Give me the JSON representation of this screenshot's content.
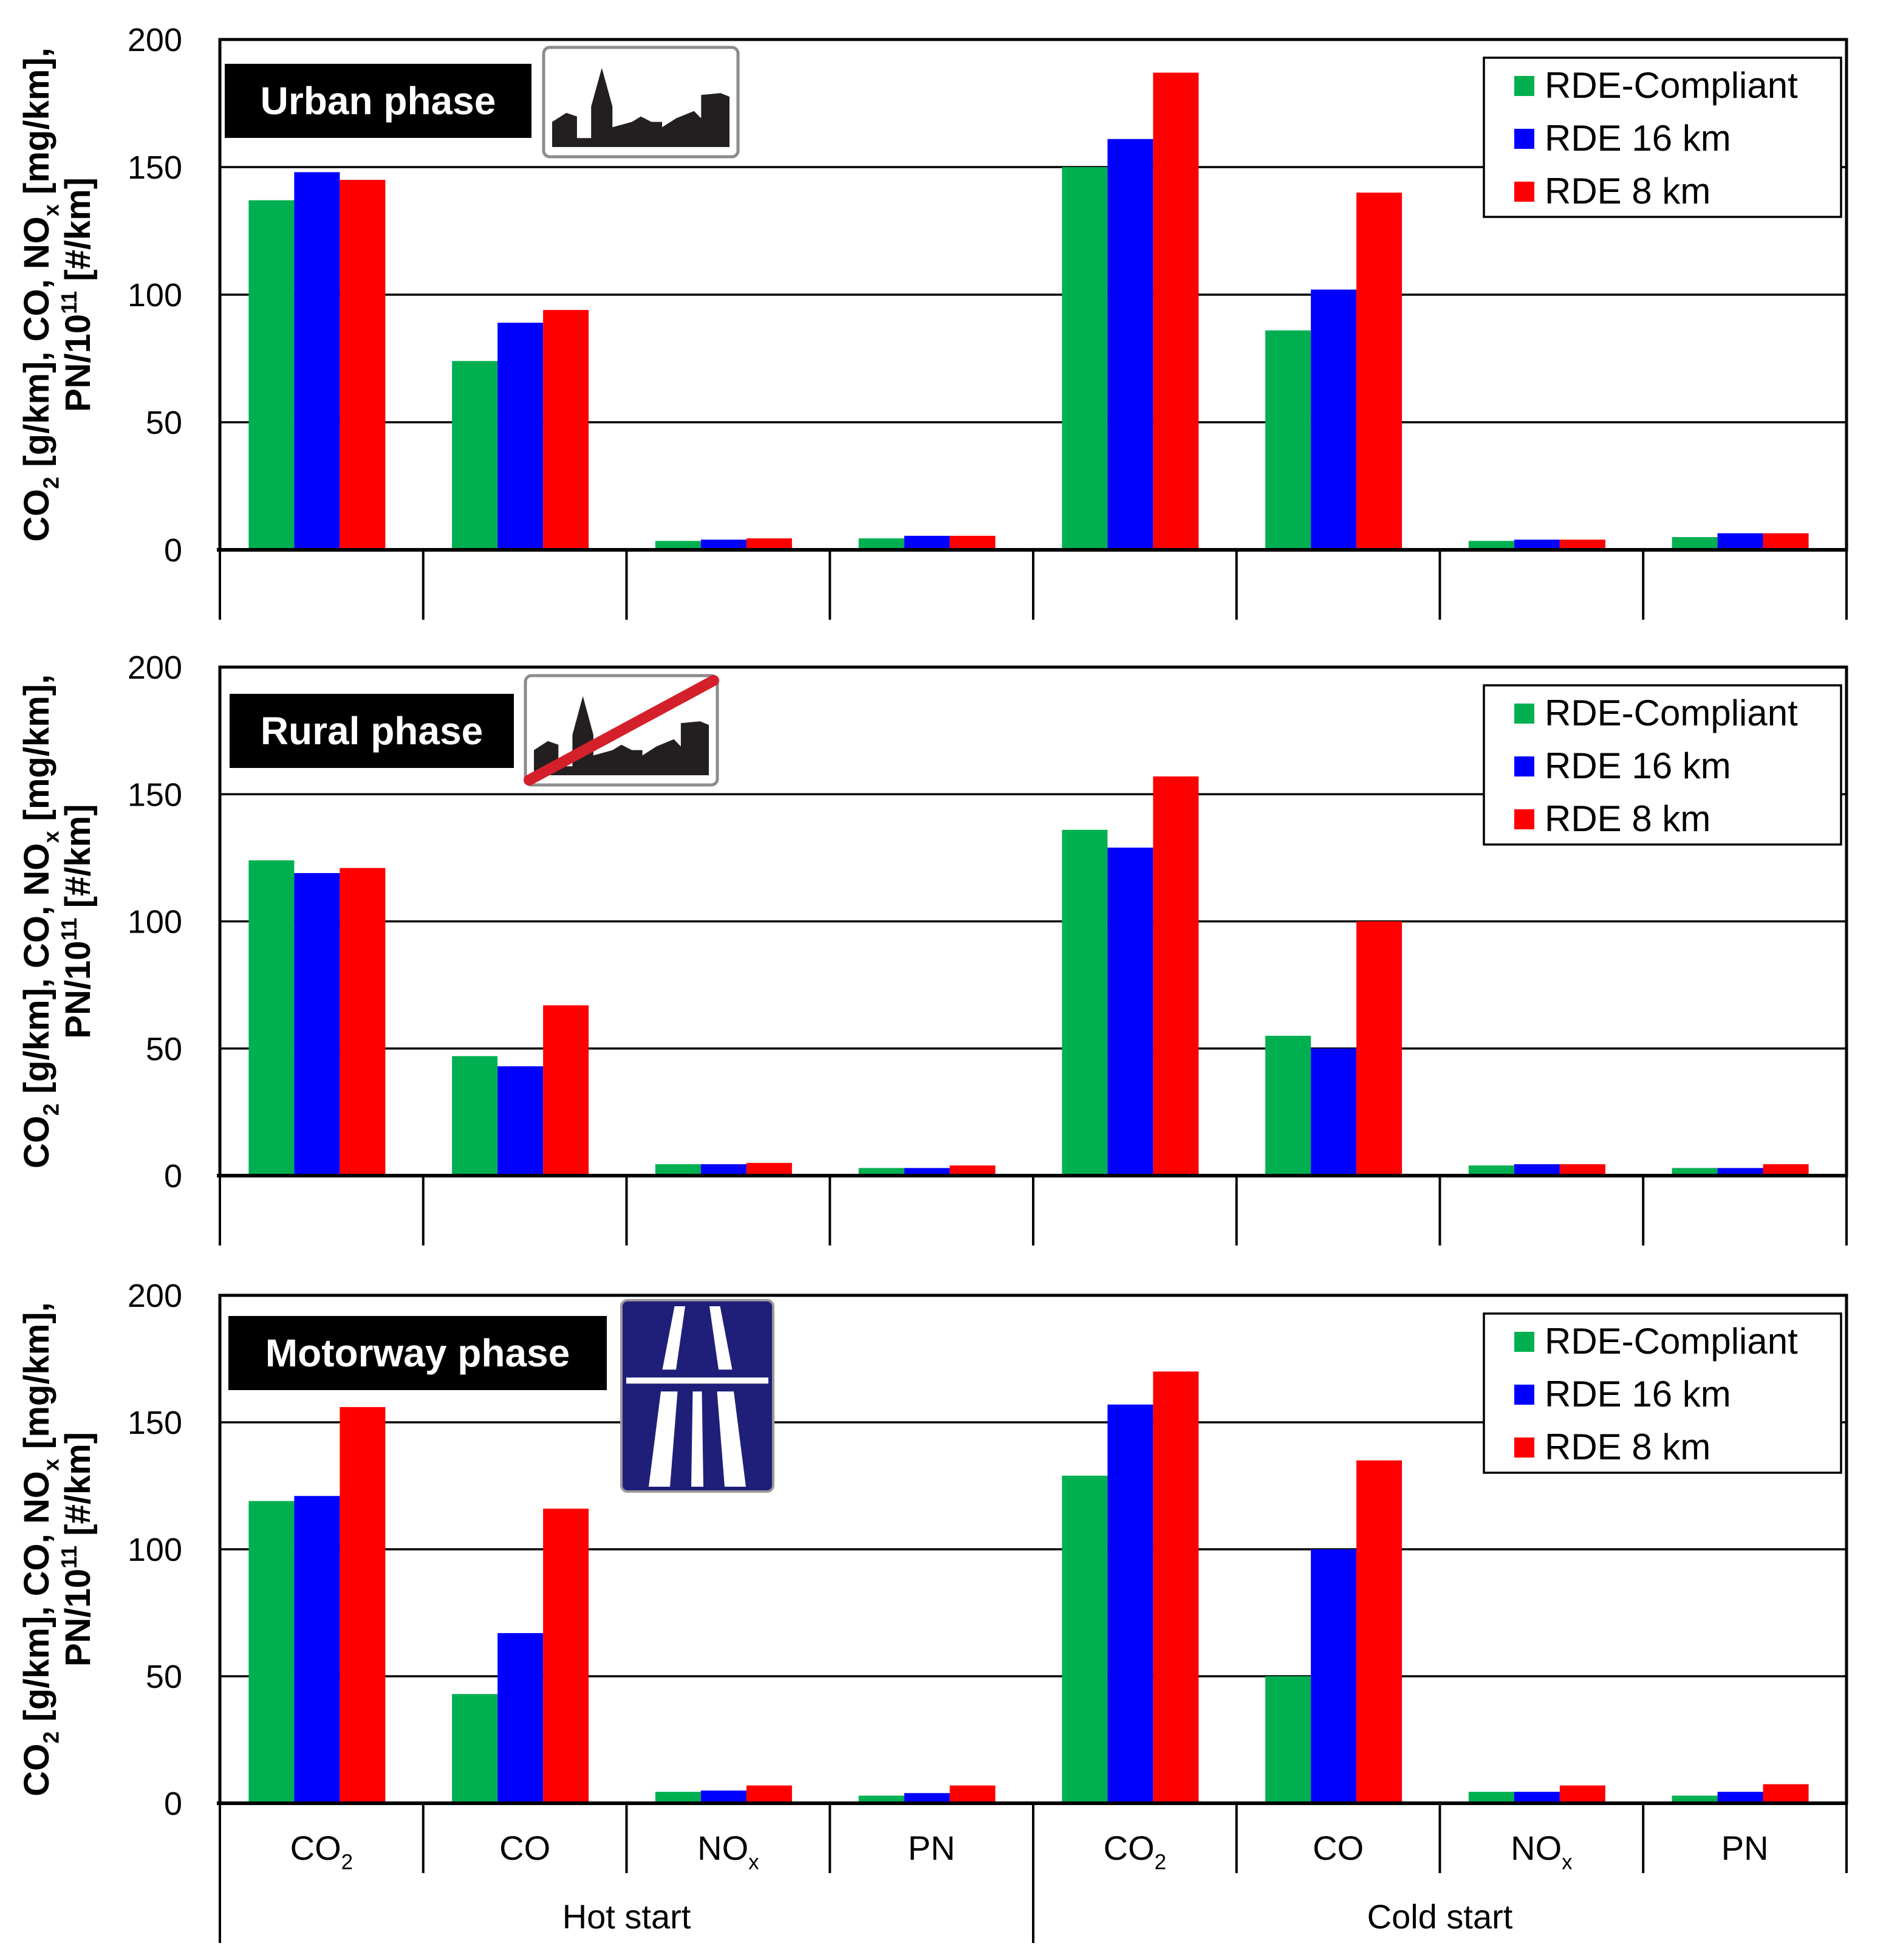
{
  "chart_data": [
    {
      "type": "bar",
      "phase_label": "Urban phase",
      "icon": "urban-town-sign-icon",
      "categories": [
        "CO2",
        "CO",
        "NOx",
        "PN",
        "CO2",
        "CO",
        "NOx",
        "PN"
      ],
      "groups": [
        "Hot start",
        "Cold start"
      ],
      "ylabel": "CO2 [g/km], CO, NOx [mg/km], PN/10^11 [#/km]",
      "ylim": [
        0,
        200
      ],
      "yticks": [
        0,
        50,
        100,
        150,
        200
      ],
      "grid": true,
      "legend_position": "top-right",
      "series": [
        {
          "name": "RDE-Compliant",
          "color": "#00b050",
          "values": [
            137,
            74,
            3.5,
            4.5,
            150,
            86,
            3.5,
            5
          ]
        },
        {
          "name": "RDE 16 km",
          "color": "#0000ff",
          "values": [
            148,
            89,
            4,
            5.5,
            161,
            102,
            4,
            6.5
          ]
        },
        {
          "name": "RDE 8 km",
          "color": "#ff0000",
          "values": [
            145,
            94,
            4.5,
            5.5,
            187,
            140,
            4,
            6.5
          ]
        }
      ]
    },
    {
      "type": "bar",
      "phase_label": "Rural phase",
      "icon": "end-of-town-sign-icon",
      "categories": [
        "CO2",
        "CO",
        "NOx",
        "PN",
        "CO2",
        "CO",
        "NOx",
        "PN"
      ],
      "groups": [
        "Hot start",
        "Cold start"
      ],
      "ylabel": "CO2 [g/km], CO, NOx [mg/km], PN/10^11 [#/km]",
      "ylim": [
        0,
        200
      ],
      "yticks": [
        0,
        50,
        100,
        150,
        200
      ],
      "grid": true,
      "legend_position": "top-right",
      "series": [
        {
          "name": "RDE-Compliant",
          "color": "#00b050",
          "values": [
            124,
            47,
            4.5,
            3,
            136,
            55,
            4,
            3
          ]
        },
        {
          "name": "RDE 16 km",
          "color": "#0000ff",
          "values": [
            119,
            43,
            4.5,
            3,
            129,
            50,
            4.5,
            3
          ]
        },
        {
          "name": "RDE 8 km",
          "color": "#ff0000",
          "values": [
            121,
            67,
            5,
            4,
            157,
            100,
            4.5,
            4.5
          ]
        }
      ]
    },
    {
      "type": "bar",
      "phase_label": "Motorway phase",
      "icon": "motorway-sign-icon",
      "categories": [
        "CO2",
        "CO",
        "NOx",
        "PN",
        "CO2",
        "CO",
        "NOx",
        "PN"
      ],
      "groups": [
        "Hot start",
        "Cold start"
      ],
      "ylabel": "CO2 [g/km], CO, NOx [mg/km], PN/10^11 [#/km]",
      "ylim": [
        0,
        200
      ],
      "yticks": [
        0,
        50,
        100,
        150,
        200
      ],
      "grid": true,
      "legend_position": "top-right",
      "series": [
        {
          "name": "RDE-Compliant",
          "color": "#00b050",
          "values": [
            119,
            43,
            4.5,
            3,
            129,
            50,
            4.5,
            3
          ]
        },
        {
          "name": "RDE 16 km",
          "color": "#0000ff",
          "values": [
            121,
            67,
            5,
            4,
            157,
            100,
            4.5,
            4.5
          ]
        },
        {
          "name": "RDE 8 km",
          "color": "#ff0000",
          "values": [
            156,
            116,
            7,
            7,
            170,
            135,
            7,
            7.5
          ]
        }
      ]
    }
  ]
}
